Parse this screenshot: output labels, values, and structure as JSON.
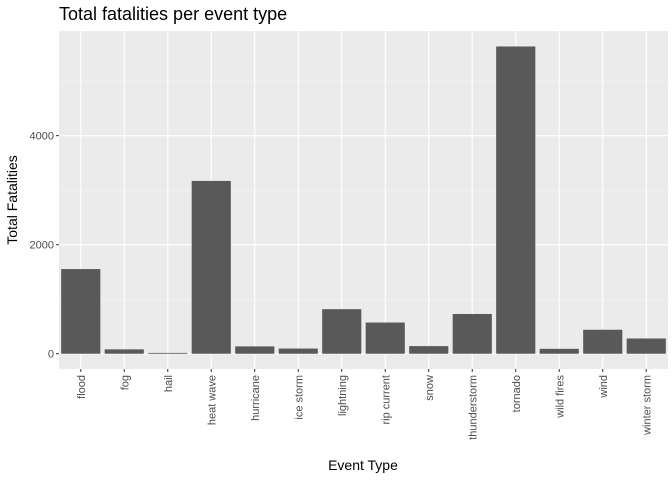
{
  "chart_data": {
    "type": "bar",
    "title": "Total fatalities per event type",
    "xlabel": "Event Type",
    "ylabel": "Total Fatalities",
    "categories": [
      "flood",
      "fog",
      "hail",
      "heat wave",
      "hurricane",
      "ice storm",
      "lightning",
      "rip current",
      "snow",
      "thunderstorm",
      "tornado",
      "wild fires",
      "wind",
      "winter storm"
    ],
    "values": [
      1553,
      80,
      15,
      3170,
      135,
      95,
      817,
      572,
      140,
      729,
      5636,
      90,
      440,
      280
    ],
    "ylim": [
      -280,
      5920
    ],
    "yticks": [
      0,
      2000,
      4000
    ],
    "ytick_labels": [
      "0",
      "2000",
      "4000"
    ],
    "grid": true,
    "colors": {
      "bar": "#595959",
      "panel": "#ebebeb",
      "grid_major": "#ffffff",
      "grid_minor": "#f5f5f5",
      "tick_text": "#4d4d4d",
      "tick_line": "#333333"
    }
  }
}
